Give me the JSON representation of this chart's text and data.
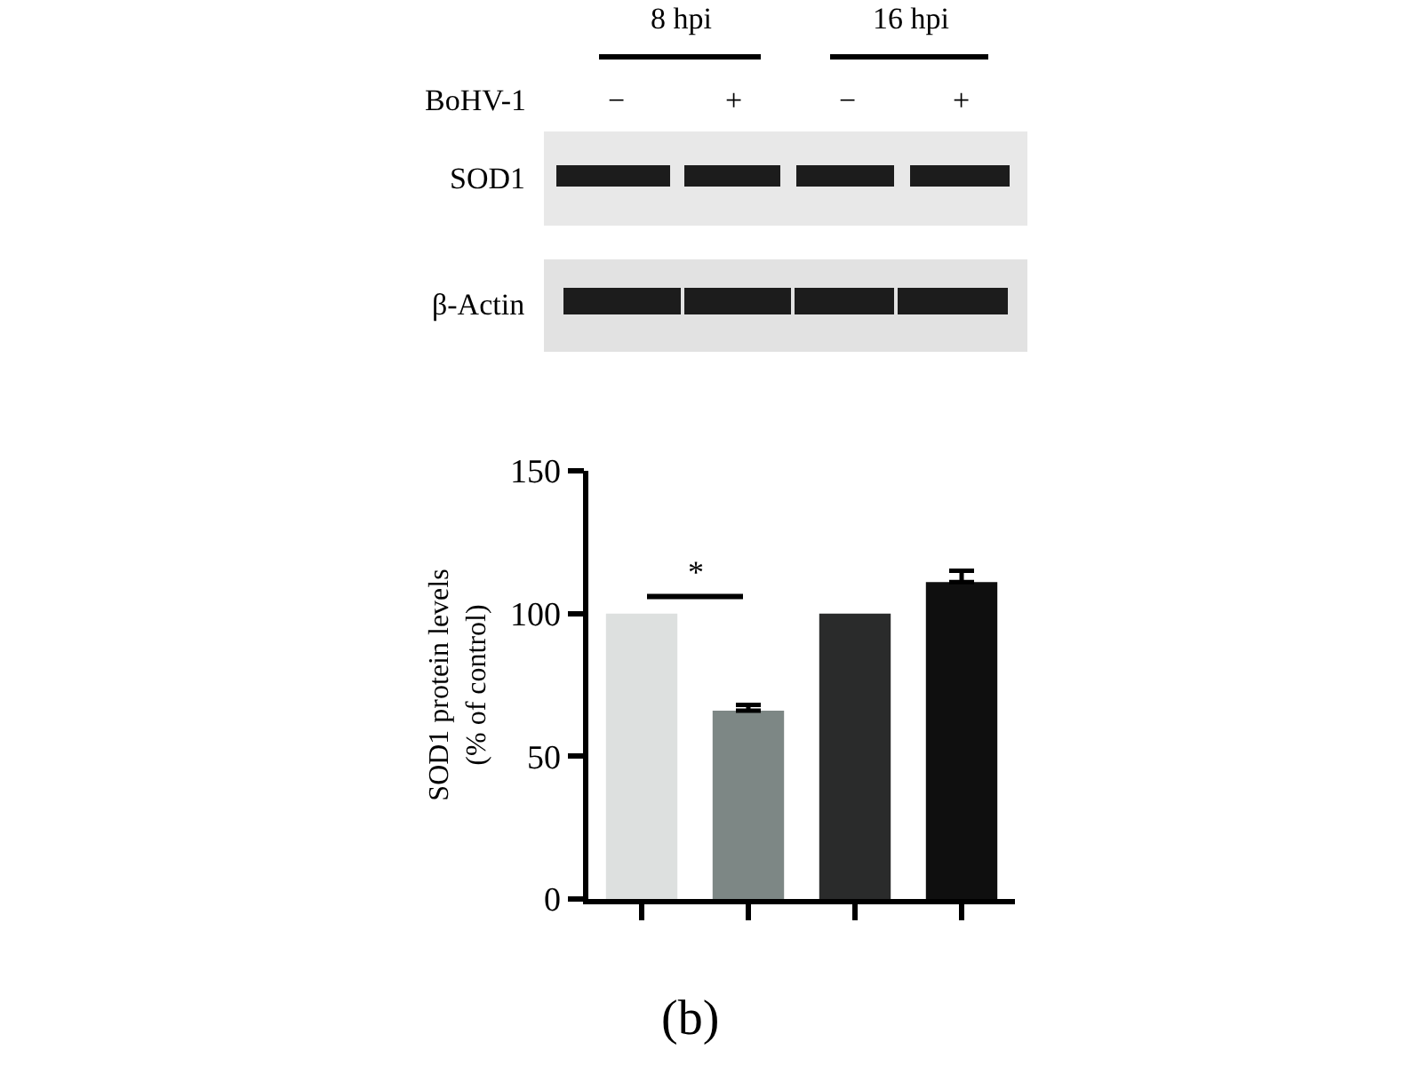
{
  "chart_data": {
    "type": "bar",
    "ylabel": "SOD1 protein levels\n(% of control)",
    "categories": [
      null,
      null,
      null,
      null
    ],
    "values": [
      100,
      66,
      100,
      111
    ],
    "colors": [
      "#dde0df",
      "#7d8785",
      "#2a2b2b",
      "#0f0f0f"
    ],
    "errors": [
      null,
      [
        66,
        68
      ],
      null,
      [
        111,
        115
      ]
    ],
    "ylim": [
      0,
      150
    ],
    "yticks": [
      0,
      50,
      100,
      150
    ],
    "tick_labels": "y",
    "annotations": [
      "8 hpi",
      "16 hpi",
      "BoHV-1",
      "−",
      "+",
      "−",
      "+",
      "SOD1",
      "β-Actin",
      "*",
      "(b)"
    ]
  }
}
